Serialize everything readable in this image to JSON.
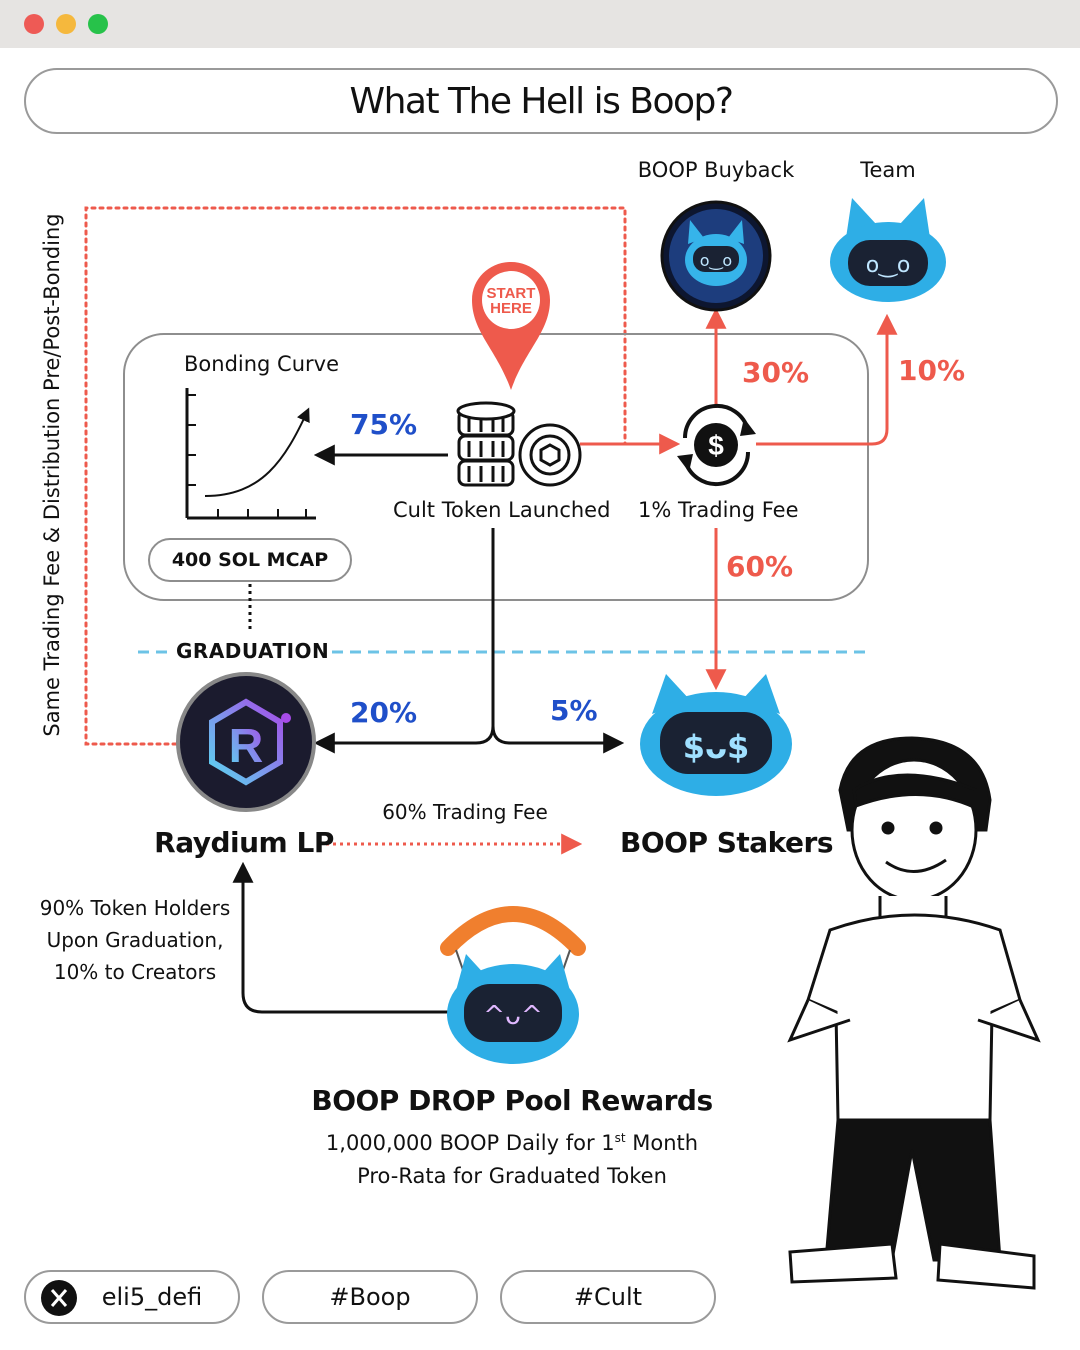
{
  "window": {
    "controls": [
      "close",
      "minimize",
      "maximize"
    ],
    "colors": {
      "close": "#ee5a55",
      "minimize": "#f5b83d",
      "maximize": "#27c24a"
    }
  },
  "title": "What The Hell is Boop?",
  "side_note": "Same Trading Fee & Distribution Pre/Post-Bonding",
  "start_marker": {
    "line1": "START",
    "line2": "HERE"
  },
  "nodes": {
    "bonding_curve": "Bonding Curve",
    "mcap": "400 SOL MCAP",
    "graduation": "GRADUATION",
    "cult_token": "Cult Token Launched",
    "trading_fee": "1% Trading Fee",
    "buyback": "BOOP Buyback",
    "team": "Team",
    "raydium": "Raydium LP",
    "stakers": "BOOP Stakers",
    "drop_title": "BOOP DROP  Pool Rewards",
    "drop_line1_a": "1,000,000 BOOP Daily for 1",
    "drop_line1_sup": "st",
    "drop_line1_b": " Month",
    "drop_line2": "Pro-Rata for Graduated Token"
  },
  "percentages": {
    "curve": "75%",
    "lp": "20%",
    "stakers_token": "5%",
    "buyback": "30%",
    "team": "10%",
    "stakers_fee": "60%"
  },
  "flows": {
    "lp_to_stakers": "60% Trading Fee"
  },
  "holders_note": {
    "line1": "90% Token Holders",
    "line2": "Upon Graduation,",
    "line3": "10% to Creators"
  },
  "footer": {
    "handle": "eli5_defi",
    "tag1": "#Boop",
    "tag2": "#Cult"
  },
  "colors": {
    "blue_pct": "#1f4fc9",
    "red_pct": "#ee5a4c",
    "dashed_line": "#6cc3e6",
    "mascot": "#2eaee6"
  },
  "icons": [
    "coin-stack-icon",
    "dollar-cycle-icon",
    "raydium-logo-icon",
    "x-logo-icon",
    "location-pin-icon",
    "cat-mascot-icon",
    "cartoon-man-illustration"
  ]
}
